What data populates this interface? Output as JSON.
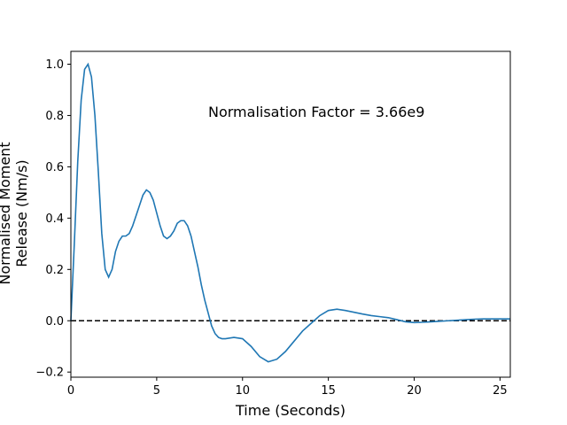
{
  "chart_data": {
    "type": "line",
    "title": "",
    "xlabel": "Time (Seconds)",
    "ylabel_lines": [
      "Normalised Moment",
      "Release (Nm/s)"
    ],
    "annotation": "Normalisation Factor = 3.66e9",
    "xlim": [
      0,
      25.6
    ],
    "ylim": [
      -0.22,
      1.05
    ],
    "xticks": [
      0,
      5,
      10,
      15,
      20,
      25
    ],
    "yticks": [
      -0.2,
      0.0,
      0.2,
      0.4,
      0.6,
      0.8,
      1.0
    ],
    "ytick_labels": [
      "−0.2",
      "0.0",
      "0.2",
      "0.4",
      "0.6",
      "0.8",
      "1.0"
    ],
    "grid": false,
    "reference_line": {
      "y": 0.0,
      "style": "dashed",
      "color": "#000000"
    },
    "series": [
      {
        "color": "#1f77b4",
        "x": [
          0,
          0.2,
          0.4,
          0.6,
          0.8,
          1.0,
          1.2,
          1.4,
          1.6,
          1.8,
          2.0,
          2.2,
          2.4,
          2.6,
          2.8,
          3.0,
          3.2,
          3.4,
          3.6,
          3.8,
          4.0,
          4.2,
          4.4,
          4.6,
          4.8,
          5.0,
          5.2,
          5.4,
          5.6,
          5.8,
          6.0,
          6.2,
          6.4,
          6.6,
          6.8,
          7.0,
          7.2,
          7.4,
          7.6,
          7.8,
          8.0,
          8.2,
          8.4,
          8.6,
          8.8,
          9.0,
          9.5,
          10.0,
          10.5,
          11.0,
          11.5,
          12.0,
          12.5,
          13.0,
          13.5,
          14.0,
          14.5,
          15.0,
          15.5,
          16.0,
          16.5,
          17.0,
          17.5,
          18.0,
          18.5,
          19.0,
          19.5,
          20.0,
          20.5,
          21.0,
          21.5,
          22.0,
          22.5,
          23.0,
          23.5,
          24.0,
          24.5,
          25.0,
          25.6
        ],
        "y": [
          0.0,
          0.3,
          0.62,
          0.86,
          0.98,
          1.0,
          0.95,
          0.8,
          0.58,
          0.34,
          0.2,
          0.17,
          0.2,
          0.27,
          0.31,
          0.33,
          0.33,
          0.34,
          0.37,
          0.41,
          0.45,
          0.49,
          0.51,
          0.5,
          0.47,
          0.42,
          0.37,
          0.33,
          0.32,
          0.33,
          0.35,
          0.38,
          0.39,
          0.39,
          0.37,
          0.33,
          0.27,
          0.21,
          0.14,
          0.08,
          0.03,
          -0.02,
          -0.05,
          -0.065,
          -0.07,
          -0.07,
          -0.065,
          -0.07,
          -0.1,
          -0.14,
          -0.16,
          -0.15,
          -0.12,
          -0.08,
          -0.04,
          -0.01,
          0.02,
          0.04,
          0.045,
          0.04,
          0.033,
          0.026,
          0.02,
          0.016,
          0.012,
          0.004,
          -0.004,
          -0.007,
          -0.006,
          -0.004,
          -0.002,
          0.0,
          0.002,
          0.004,
          0.006,
          0.007,
          0.007,
          0.007,
          0.007
        ]
      }
    ]
  }
}
